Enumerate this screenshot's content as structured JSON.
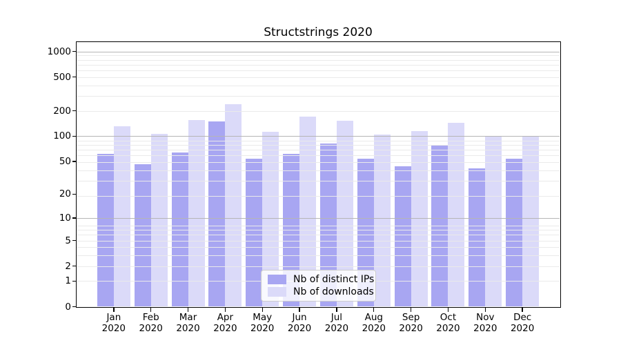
{
  "title": "Structstrings 2020",
  "chart_data": {
    "type": "bar",
    "title": "Structstrings 2020",
    "categories": [
      "Jan 2020",
      "Feb 2020",
      "Mar 2020",
      "Apr 2020",
      "May 2020",
      "Jun 2020",
      "Jul 2020",
      "Aug 2020",
      "Sep 2020",
      "Oct 2020",
      "Nov 2020",
      "Dec 2020"
    ],
    "series": [
      {
        "name": "Nb of distinct IPs",
        "color": "#a8a6f2",
        "values": [
          61,
          46,
          64,
          150,
          54,
          61,
          82,
          54,
          44,
          78,
          41,
          54
        ]
      },
      {
        "name": "Nb of downloads",
        "color": "#dbdaf9",
        "values": [
          130,
          107,
          155,
          238,
          112,
          171,
          151,
          105,
          114,
          144,
          101,
          98
        ]
      }
    ],
    "xlabel": "",
    "ylabel": "",
    "yscale": "log1p",
    "y_ticks": [
      0,
      1,
      2,
      5,
      10,
      20,
      50,
      100,
      200,
      500,
      1000
    ],
    "ylim": [
      0,
      1260
    ],
    "grid": "on",
    "legend_position": "lower center inside plot",
    "colors": {
      "background": "#ffffff",
      "spine": "#000000",
      "text": "#000000",
      "major_grid": "#b5b5b5",
      "minor_grid": "#eaeaea"
    }
  }
}
